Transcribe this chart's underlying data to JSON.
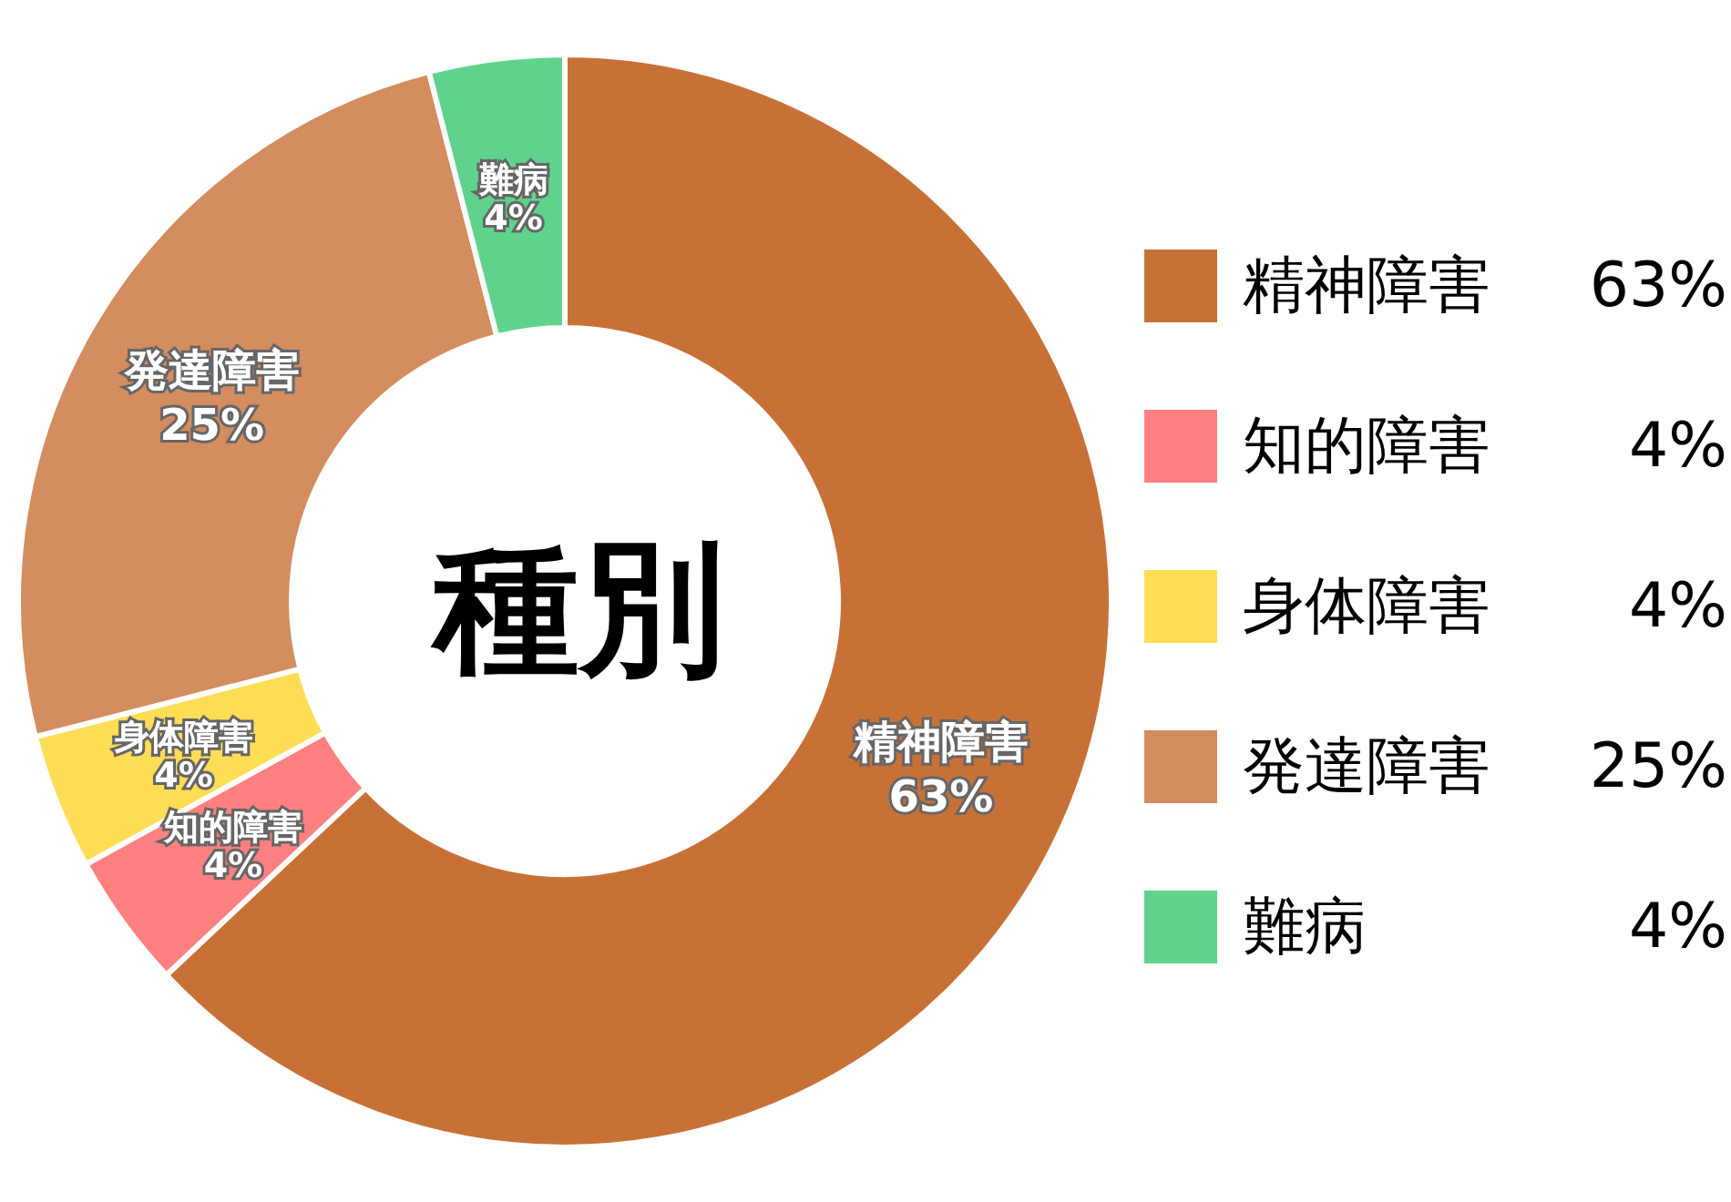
{
  "chart_data": {
    "type": "donut",
    "title": "種別",
    "categories": [
      "精神障害",
      "知的障害",
      "身体障害",
      "発達障害",
      "難病"
    ],
    "values": [
      63,
      4,
      4,
      25,
      4
    ],
    "value_labels": [
      "63%",
      "4%",
      "4%",
      "25%",
      "4%"
    ],
    "colors": [
      "#c87137",
      "#ff8080",
      "#ffdd55",
      "#d38d5f",
      "#5fd38d"
    ],
    "data_labels": true,
    "legend": "right"
  }
}
